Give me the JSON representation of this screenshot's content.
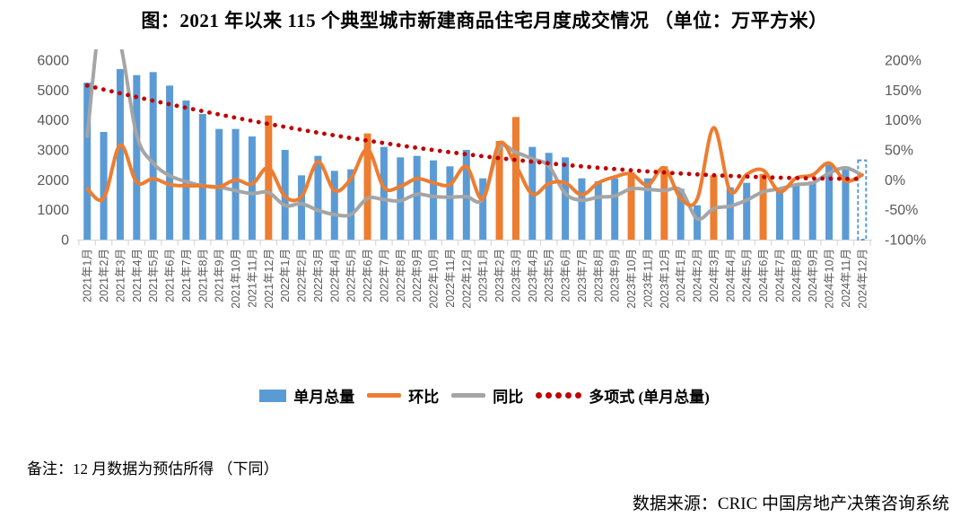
{
  "title": "图：2021 年以来 115 个典型城市新建商品住宅月度成交情况 （单位：万平方米）",
  "note": "备注：12 月数据为预估所得 （下同）",
  "source": "数据来源：CRIC 中国房地产决策咨询系统",
  "colors": {
    "bar_blue": "#5B9BD5",
    "bar_orange_highlight": "#ED7D31",
    "line_mom": "#ED7D31",
    "line_yoy": "#A5A5A5",
    "poly_trend_red": "#C00000",
    "axis_text": "#595959",
    "axis_line": "#D9D9D9"
  },
  "legend": {
    "items": [
      {
        "label": "单月总量",
        "swatch": "blue-bar"
      },
      {
        "label": "环比",
        "swatch": "orange-line"
      },
      {
        "label": "同比",
        "swatch": "gray-line"
      },
      {
        "label": "多项式 (单月总量)",
        "swatch": "red-dots"
      }
    ]
  },
  "left_axis": {
    "min": 0,
    "max": 6000,
    "ticks": [
      6000,
      5000,
      4000,
      3000,
      2000,
      1000,
      0
    ]
  },
  "right_axis": {
    "min": -100,
    "max": 200,
    "ticks": [
      "200%",
      "150%",
      "100%",
      "50%",
      "0%",
      "-50%",
      "-100%"
    ]
  },
  "chart_data": {
    "type": "combo_bar_line",
    "unit": "万平方米",
    "categories": [
      "2021年1月",
      "2021年2月",
      "2021年3月",
      "2021年4月",
      "2021年5月",
      "2021年6月",
      "2021年7月",
      "2021年8月",
      "2021年9月",
      "2021年10月",
      "2021年11月",
      "2021年12月",
      "2022年1月",
      "2022年2月",
      "2022年3月",
      "2022年4月",
      "2022年5月",
      "2022年6月",
      "2022年7月",
      "2022年8月",
      "2022年9月",
      "2022年10月",
      "2022年11月",
      "2022年12月",
      "2023年1月",
      "2023年2月",
      "2023年3月",
      "2023年4月",
      "2023年5月",
      "2023年6月",
      "2023年7月",
      "2023年8月",
      "2023年9月",
      "2023年10月",
      "2023年11月",
      "2023年12月",
      "2024年1月",
      "2024年2月",
      "2024年3月",
      "2024年4月",
      "2024年5月",
      "2024年6月",
      "2024年7月",
      "2024年8月",
      "2024年9月",
      "2024年10月",
      "2024年11月",
      "2024年12月"
    ],
    "series": [
      {
        "name": "单月总量",
        "type": "bar",
        "axis": "left",
        "values": [
          5250,
          3600,
          5700,
          5500,
          5600,
          5150,
          4650,
          4200,
          3700,
          3700,
          3450,
          4150,
          3000,
          2150,
          2800,
          2300,
          2350,
          3550,
          3100,
          2750,
          2800,
          2650,
          2450,
          3000,
          2050,
          3300,
          4100,
          3100,
          2900,
          2750,
          2050,
          1950,
          2050,
          2250,
          2050,
          2450,
          1700,
          1150,
          2150,
          1750,
          1900,
          2200,
          1750,
          1800,
          1950,
          2500,
          2450,
          2650
        ],
        "highlight_orange_months": [
          12,
          18,
          26,
          27,
          34,
          36,
          39,
          42
        ],
        "last_bar_dashed_estimated": true
      },
      {
        "name": "环比",
        "type": "line",
        "axis": "right_percent",
        "values": [
          -15,
          -31,
          58,
          -4,
          2,
          -8,
          -10,
          -10,
          -12,
          0,
          -7,
          20,
          -28,
          -28,
          30,
          -18,
          2,
          51,
          -13,
          -11,
          2,
          -5,
          -8,
          22,
          -32,
          61,
          24,
          -24,
          -6,
          -5,
          -25,
          -5,
          5,
          10,
          -9,
          20,
          -31,
          -32,
          87,
          -19,
          9,
          16,
          -20,
          3,
          8,
          28,
          -2,
          8
        ]
      },
      {
        "name": "同比",
        "type": "line",
        "axis": "right_percent",
        "values": [
          73,
          305,
          230,
          75,
          28,
          7,
          -3,
          -10,
          -12,
          -18,
          -23,
          -21,
          -43,
          -40,
          -51,
          -58,
          -58,
          -31,
          -33,
          -35,
          -24,
          -28,
          -29,
          -28,
          -32,
          53,
          46,
          35,
          23,
          -23,
          -34,
          -29,
          -27,
          -15,
          -16,
          -18,
          -17,
          -65,
          -48,
          -44,
          -34,
          -20,
          -15,
          -8,
          -5,
          11,
          20,
          8
        ]
      },
      {
        "name": "多项式 (单月总量)",
        "type": "dotted_trendline",
        "axis": "left",
        "values": [
          5150,
          5019,
          4892,
          4767,
          4644,
          4525,
          4408,
          4295,
          4184,
          4075,
          3970,
          3867,
          3768,
          3671,
          3576,
          3485,
          3396,
          3311,
          3228,
          3147,
          3070,
          2995,
          2924,
          2855,
          2788,
          2725,
          2664,
          2607,
          2552,
          2499,
          2450,
          2403,
          2360,
          2318,
          2280,
          2245,
          2212,
          2182,
          2154,
          2130,
          2108,
          2089,
          2072,
          2059,
          2048,
          2040,
          2034,
          2031
        ]
      }
    ]
  }
}
